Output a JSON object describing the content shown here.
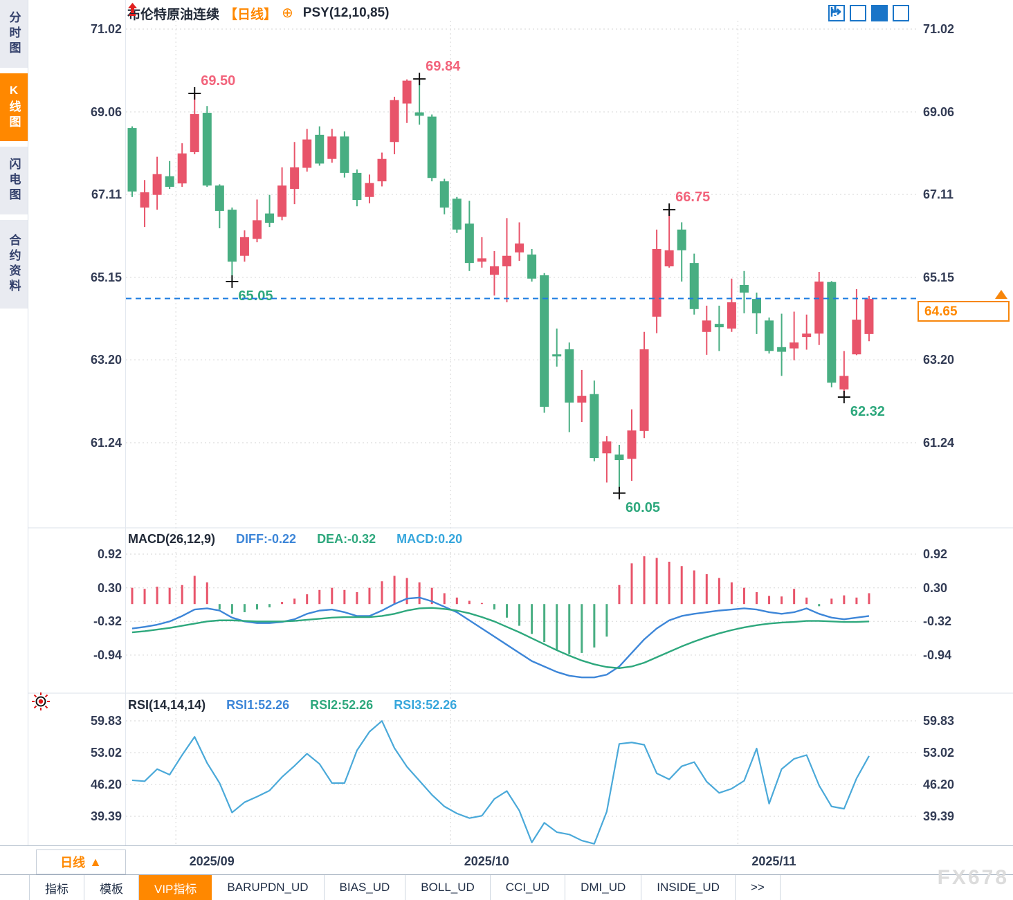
{
  "header": {
    "title": "布伦特原油连续",
    "period_tag": "【日线】",
    "circle_plus": "⊕",
    "indicator": "PSY(12,10,85)"
  },
  "sidebar": {
    "items": [
      {
        "label": "分时图",
        "selected": false
      },
      {
        "label": "K线图",
        "selected": true
      },
      {
        "label": "闪电图",
        "selected": false
      },
      {
        "label": "合约资料",
        "selected": false
      }
    ]
  },
  "toolbar_icons": [
    {
      "name": "crosshair-move-icon",
      "selected": false
    },
    {
      "name": "axis-range-icon",
      "selected": false
    },
    {
      "name": "axis-scale-icon",
      "selected": true
    },
    {
      "name": "pan-right-icon",
      "selected": false
    }
  ],
  "price_axis_labels": [
    "71.02",
    "69.06",
    "67.11",
    "65.15",
    "63.20",
    "61.24"
  ],
  "current_price": {
    "value": "64.65"
  },
  "macd_header": {
    "title": "MACD(26,12,9)",
    "diff_label": "DIFF:-0.22",
    "dea_label": "DEA:-0.32",
    "macd_label": "MACD:0.20"
  },
  "macd_axis_labels": [
    "0.92",
    "0.30",
    "-0.32",
    "-0.94"
  ],
  "rsi_header": {
    "title": "RSI(14,14,14)",
    "rsi1_label": "RSI1:52.26",
    "rsi2_label": "RSI2:52.26",
    "rsi3_label": "RSI3:52.26"
  },
  "rsi_axis_labels": [
    "59.83",
    "53.02",
    "46.20",
    "39.39"
  ],
  "xaxis": {
    "period_selector": "日线",
    "arrow": "▲",
    "months": [
      {
        "label": "2025/09",
        "start_index": 4
      },
      {
        "label": "2025/10",
        "start_index": 26
      },
      {
        "label": "2025/11",
        "start_index": 49
      }
    ]
  },
  "tabs": [
    {
      "label": "指标",
      "selected": false
    },
    {
      "label": "模板",
      "selected": false
    },
    {
      "label": "VIP指标",
      "selected": true
    },
    {
      "label": "BARUPDN_UD",
      "selected": false
    },
    {
      "label": "BIAS_UD",
      "selected": false
    },
    {
      "label": "BOLL_UD",
      "selected": false
    },
    {
      "label": "CCI_UD",
      "selected": false
    },
    {
      "label": "DMI_UD",
      "selected": false
    },
    {
      "label": "INSIDE_UD",
      "selected": false
    },
    {
      "label": ">>",
      "selected": false
    }
  ],
  "watermark": "FX678",
  "colors": {
    "up": "#e8546a",
    "down": "#48ae82",
    "diff_line": "#3d86d8",
    "dea_line": "#2ea87d",
    "rsi_line": "#4aa9d9",
    "accent": "#ff8800",
    "current_line": "#1c7ce0",
    "marker_high": "#f2637b",
    "marker_low": "#2ea87d",
    "grid": "#e2e2e2",
    "cross": "#111111"
  },
  "chart_data": {
    "type": "candlestick-with-indicators",
    "symbol": "布伦特原油连续",
    "period": "日线",
    "main": {
      "ylim": [
        59.9,
        71.02
      ],
      "yticks": [
        71.02,
        69.06,
        67.11,
        65.15,
        63.2,
        61.24
      ],
      "current_price": 64.65,
      "candles_ohlc": [
        [
          68.68,
          68.72,
          67.05,
          67.18
        ],
        [
          66.8,
          67.45,
          66.34,
          67.16
        ],
        [
          67.1,
          68.0,
          66.75,
          67.59
        ],
        [
          67.54,
          67.9,
          67.24,
          67.29
        ],
        [
          67.37,
          68.32,
          67.29,
          68.08
        ],
        [
          68.11,
          69.5,
          68.06,
          69.01
        ],
        [
          69.04,
          69.2,
          67.29,
          67.32
        ],
        [
          67.32,
          67.35,
          66.31,
          66.72
        ],
        [
          66.75,
          66.8,
          65.05,
          65.52
        ],
        [
          65.66,
          66.26,
          65.52,
          66.1
        ],
        [
          66.06,
          66.99,
          65.98,
          66.5
        ],
        [
          66.66,
          67.1,
          66.34,
          66.44
        ],
        [
          66.58,
          67.75,
          66.5,
          67.32
        ],
        [
          67.24,
          68.35,
          66.88,
          67.75
        ],
        [
          67.74,
          68.66,
          67.65,
          68.41
        ],
        [
          68.52,
          68.72,
          67.79,
          67.84
        ],
        [
          67.95,
          68.66,
          67.86,
          68.48
        ],
        [
          68.48,
          68.6,
          67.51,
          67.62
        ],
        [
          67.62,
          67.7,
          66.83,
          66.98
        ],
        [
          67.05,
          67.58,
          66.9,
          67.38
        ],
        [
          67.42,
          68.1,
          67.3,
          67.95
        ],
        [
          68.35,
          69.42,
          68.06,
          69.34
        ],
        [
          69.26,
          69.83,
          68.8,
          69.8
        ],
        [
          69.05,
          69.84,
          68.76,
          68.97
        ],
        [
          68.95,
          69.0,
          67.42,
          67.5
        ],
        [
          67.42,
          67.48,
          66.64,
          66.8
        ],
        [
          67.01,
          67.05,
          66.2,
          66.28
        ],
        [
          66.42,
          66.96,
          65.3,
          65.49
        ],
        [
          65.52,
          66.1,
          65.38,
          65.6
        ],
        [
          65.21,
          65.77,
          64.72,
          65.41
        ],
        [
          65.41,
          66.55,
          64.56,
          65.66
        ],
        [
          65.74,
          66.45,
          65.54,
          65.95
        ],
        [
          65.69,
          65.82,
          65.05,
          65.12
        ],
        [
          65.2,
          65.25,
          61.95,
          62.09
        ],
        [
          63.33,
          63.94,
          63.04,
          63.28
        ],
        [
          63.45,
          63.61,
          61.49,
          62.19
        ],
        [
          62.19,
          62.96,
          61.73,
          62.35
        ],
        [
          62.39,
          62.71,
          60.8,
          60.88
        ],
        [
          60.99,
          61.4,
          60.3,
          61.27
        ],
        [
          60.96,
          61.19,
          60.05,
          60.83
        ],
        [
          60.86,
          62.03,
          60.34,
          61.53
        ],
        [
          61.52,
          63.86,
          61.35,
          63.45
        ],
        [
          64.22,
          66.28,
          63.83,
          65.82
        ],
        [
          65.41,
          66.75,
          65.38,
          65.79
        ],
        [
          66.28,
          66.45,
          65.05,
          65.79
        ],
        [
          65.49,
          65.71,
          64.27,
          64.4
        ],
        [
          63.86,
          64.48,
          63.32,
          64.13
        ],
        [
          64.05,
          64.48,
          63.41,
          63.97
        ],
        [
          63.94,
          65.12,
          63.86,
          64.56
        ],
        [
          64.97,
          65.3,
          64.3,
          64.79
        ],
        [
          64.64,
          64.79,
          63.81,
          64.3
        ],
        [
          64.13,
          64.2,
          63.35,
          63.41
        ],
        [
          63.5,
          64.29,
          62.82,
          63.39
        ],
        [
          63.47,
          64.34,
          63.19,
          63.61
        ],
        [
          63.74,
          64.27,
          63.44,
          63.82
        ],
        [
          63.82,
          65.28,
          63.55,
          65.05
        ],
        [
          65.04,
          65.06,
          62.55,
          62.66
        ],
        [
          62.5,
          63.41,
          62.32,
          62.82
        ],
        [
          63.33,
          64.87,
          63.31,
          64.15
        ],
        [
          63.81,
          64.71,
          63.64,
          64.64
        ]
      ],
      "markers": [
        {
          "index": 5,
          "type": "high",
          "value": 69.5,
          "label": "69.50"
        },
        {
          "index": 23,
          "type": "high",
          "value": 69.84,
          "label": "69.84"
        },
        {
          "index": 43,
          "type": "high",
          "value": 66.75,
          "label": "66.75"
        },
        {
          "index": 8,
          "type": "low",
          "value": 65.05,
          "label": "65.05"
        },
        {
          "index": 39,
          "type": "low",
          "value": 60.05,
          "label": "60.05"
        },
        {
          "index": 57,
          "type": "low",
          "value": 62.32,
          "label": "62.32"
        }
      ]
    },
    "macd": {
      "params": [
        26,
        12,
        9
      ],
      "diff": -0.22,
      "dea": -0.32,
      "macd": 0.2,
      "yticks": [
        0.92,
        0.3,
        -0.32,
        -0.94
      ],
      "hist": [
        0.3,
        0.28,
        0.32,
        0.3,
        0.35,
        0.52,
        0.4,
        -0.1,
        -0.18,
        -0.15,
        -0.1,
        -0.06,
        0.04,
        0.1,
        0.18,
        0.26,
        0.3,
        0.26,
        0.22,
        0.3,
        0.42,
        0.52,
        0.48,
        0.4,
        0.3,
        0.2,
        0.12,
        0.06,
        0.02,
        -0.1,
        -0.25,
        -0.4,
        -0.55,
        -0.7,
        -0.85,
        -0.92,
        -0.9,
        -0.8,
        -0.6,
        0.35,
        0.75,
        0.88,
        0.85,
        0.78,
        0.7,
        0.62,
        0.55,
        0.48,
        0.4,
        0.3,
        0.22,
        0.15,
        0.14,
        0.28,
        0.12,
        -0.04,
        0.1,
        0.16,
        0.12,
        0.2
      ],
      "diff_series": [
        -0.45,
        -0.42,
        -0.38,
        -0.32,
        -0.22,
        -0.1,
        -0.08,
        -0.12,
        -0.25,
        -0.32,
        -0.35,
        -0.35,
        -0.33,
        -0.28,
        -0.18,
        -0.12,
        -0.1,
        -0.15,
        -0.22,
        -0.22,
        -0.12,
        0.0,
        0.1,
        0.12,
        0.05,
        -0.05,
        -0.15,
        -0.3,
        -0.45,
        -0.6,
        -0.75,
        -0.9,
        -1.05,
        -1.15,
        -1.25,
        -1.32,
        -1.35,
        -1.35,
        -1.3,
        -1.15,
        -0.9,
        -0.65,
        -0.45,
        -0.3,
        -0.22,
        -0.18,
        -0.15,
        -0.12,
        -0.1,
        -0.08,
        -0.1,
        -0.15,
        -0.18,
        -0.15,
        -0.08,
        -0.18,
        -0.25,
        -0.28,
        -0.25,
        -0.22
      ],
      "dea_series": [
        -0.52,
        -0.5,
        -0.47,
        -0.44,
        -0.4,
        -0.36,
        -0.32,
        -0.3,
        -0.3,
        -0.31,
        -0.32,
        -0.32,
        -0.32,
        -0.31,
        -0.29,
        -0.27,
        -0.25,
        -0.24,
        -0.24,
        -0.24,
        -0.22,
        -0.18,
        -0.12,
        -0.08,
        -0.07,
        -0.09,
        -0.12,
        -0.17,
        -0.24,
        -0.32,
        -0.42,
        -0.52,
        -0.63,
        -0.74,
        -0.85,
        -0.95,
        -1.04,
        -1.11,
        -1.16,
        -1.18,
        -1.15,
        -1.08,
        -0.98,
        -0.88,
        -0.78,
        -0.69,
        -0.61,
        -0.54,
        -0.48,
        -0.43,
        -0.39,
        -0.36,
        -0.34,
        -0.33,
        -0.31,
        -0.31,
        -0.32,
        -0.33,
        -0.33,
        -0.32
      ]
    },
    "rsi": {
      "params": [
        14,
        14,
        14
      ],
      "rsi1": 52.26,
      "rsi2": 52.26,
      "rsi3": 52.26,
      "yticks": [
        59.83,
        53.02,
        46.2,
        39.39
      ],
      "values": [
        47.1,
        46.9,
        49.5,
        48.3,
        52.5,
        56.4,
        50.8,
        46.5,
        40.2,
        42.4,
        43.6,
        44.9,
        47.8,
        50.2,
        52.8,
        50.6,
        46.5,
        46.5,
        53.5,
        57.5,
        59.8,
        54.0,
        50.0,
        47.0,
        44.0,
        41.5,
        40.0,
        39.0,
        39.5,
        43.1,
        44.8,
        40.6,
        33.8,
        38.0,
        36.0,
        35.5,
        34.2,
        33.5,
        40.4,
        54.9,
        55.2,
        54.7,
        48.6,
        47.3,
        50.1,
        51.0,
        46.8,
        44.4,
        45.3,
        47.0,
        53.9,
        42.1,
        49.5,
        51.7,
        52.5,
        46.0,
        41.5,
        41.0,
        47.5,
        52.3
      ]
    }
  }
}
